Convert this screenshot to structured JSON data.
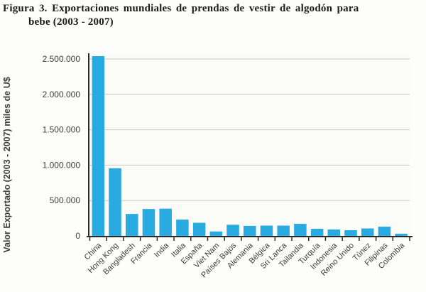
{
  "figure": {
    "title_line1": "Figura 3. Exportaciones mundiales de prendas de vestir de algodón para",
    "title_line2": "bebe (2003 - 2007)"
  },
  "chart_data": {
    "type": "bar",
    "title": "Figura 3. Exportaciones mundiales de prendas de vestir de algodón para bebe (2003 - 2007)",
    "xlabel": "",
    "ylabel": "Valor Exportado (2003 - 2007) miles de U$",
    "categories": [
      "China",
      "Hong Kong",
      "Bangladesh",
      "Francia",
      "India",
      "Italia",
      "España",
      "Viet Nam",
      "Países Bajos",
      "Alemania",
      "Bélgica",
      "Sri Lanca",
      "Tailandia",
      "Turquía",
      "Indonesia",
      "Reino Unido",
      "Túnez",
      "Filipinas",
      "Colombia"
    ],
    "values": [
      2540000,
      955000,
      310000,
      380000,
      385000,
      230000,
      185000,
      62000,
      157000,
      142000,
      145000,
      145000,
      170000,
      100000,
      90000,
      80000,
      105000,
      130000,
      30000
    ],
    "ylim": [
      0,
      2500000
    ],
    "ytick_interval": 500000,
    "ytick_labels": [
      "0",
      "500.000",
      "1.000.000",
      "1.500.000",
      "2.000.000",
      "2.500.000"
    ],
    "grid": true,
    "legend": false,
    "colors": {
      "bar": "#29abe2",
      "axis": "#2b2b2b",
      "grid": "#c9c9c9",
      "text": "#3c3c3c",
      "plot_bg": "#fbfbf8"
    }
  }
}
